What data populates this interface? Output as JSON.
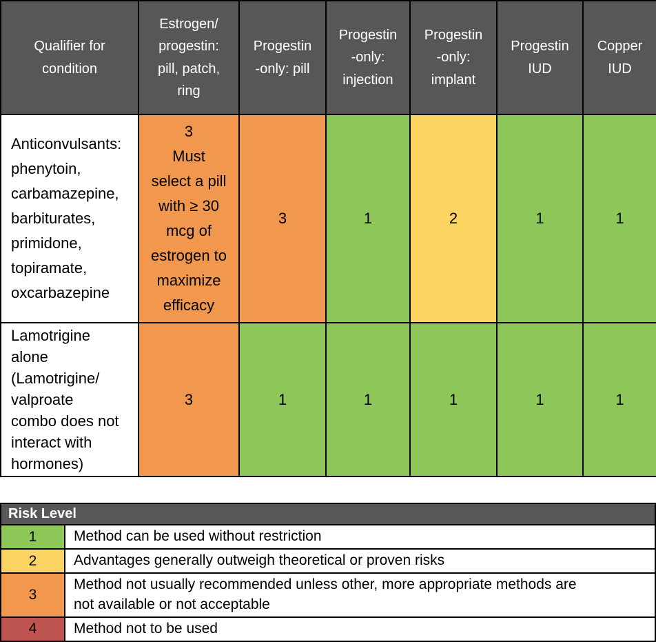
{
  "colors": {
    "header_bg": "#575757",
    "header_text": "#FFFFFF",
    "body_text": "#000000",
    "border": "#000000",
    "risk": {
      "1": "#8DC75A",
      "2": "#FCD464",
      "3": "#F2984E",
      "4": "#BE5450"
    }
  },
  "main_table": {
    "columns": [
      {
        "label": "Qualifier for\ncondition"
      },
      {
        "label": "Estrogen/\nprogestin:\npill, patch,\nring"
      },
      {
        "label": "Progestin\n-only: pill"
      },
      {
        "label": "Progestin\n-only:\ninjection"
      },
      {
        "label": "Progestin\n-only:\nimplant"
      },
      {
        "label": "Progestin\nIUD"
      },
      {
        "label": "Copper\nIUD"
      }
    ],
    "rows": [
      {
        "condition": "Anticonvulsants:\nphenytoin,\ncarbamazepine,\nbarbiturates,\nprimidone,\ntopiramate,\noxcarbazepine",
        "cells": [
          {
            "text": "3\nMust\nselect a pill\nwith ≥ 30\nmcg of\nestrogen to\nmaximize\nefficacy",
            "risk": 3
          },
          {
            "text": "3",
            "risk": 3
          },
          {
            "text": "1",
            "risk": 1
          },
          {
            "text": "2",
            "risk": 2
          },
          {
            "text": "1",
            "risk": 1
          },
          {
            "text": "1",
            "risk": 1
          }
        ]
      },
      {
        "condition": "Lamotrigine\nalone\n(Lamotrigine/\nvalproate\ncombo does not\ninteract with\nhormones)",
        "cells": [
          {
            "text": "3",
            "risk": 3
          },
          {
            "text": "1",
            "risk": 1
          },
          {
            "text": "1",
            "risk": 1
          },
          {
            "text": "1",
            "risk": 1
          },
          {
            "text": "1",
            "risk": 1
          },
          {
            "text": "1",
            "risk": 1
          }
        ]
      }
    ]
  },
  "legend": {
    "title": "Risk Level",
    "rows": [
      {
        "level": "1",
        "risk": 1,
        "description": "Method can be used without restriction"
      },
      {
        "level": "2",
        "risk": 2,
        "description": "Advantages generally outweigh theoretical or proven risks"
      },
      {
        "level": "3",
        "risk": 3,
        "description": "Method not usually recommended unless other, more appropriate methods are\nnot available or not acceptable"
      },
      {
        "level": "4",
        "risk": 4,
        "description": "Method not to be used"
      }
    ]
  }
}
